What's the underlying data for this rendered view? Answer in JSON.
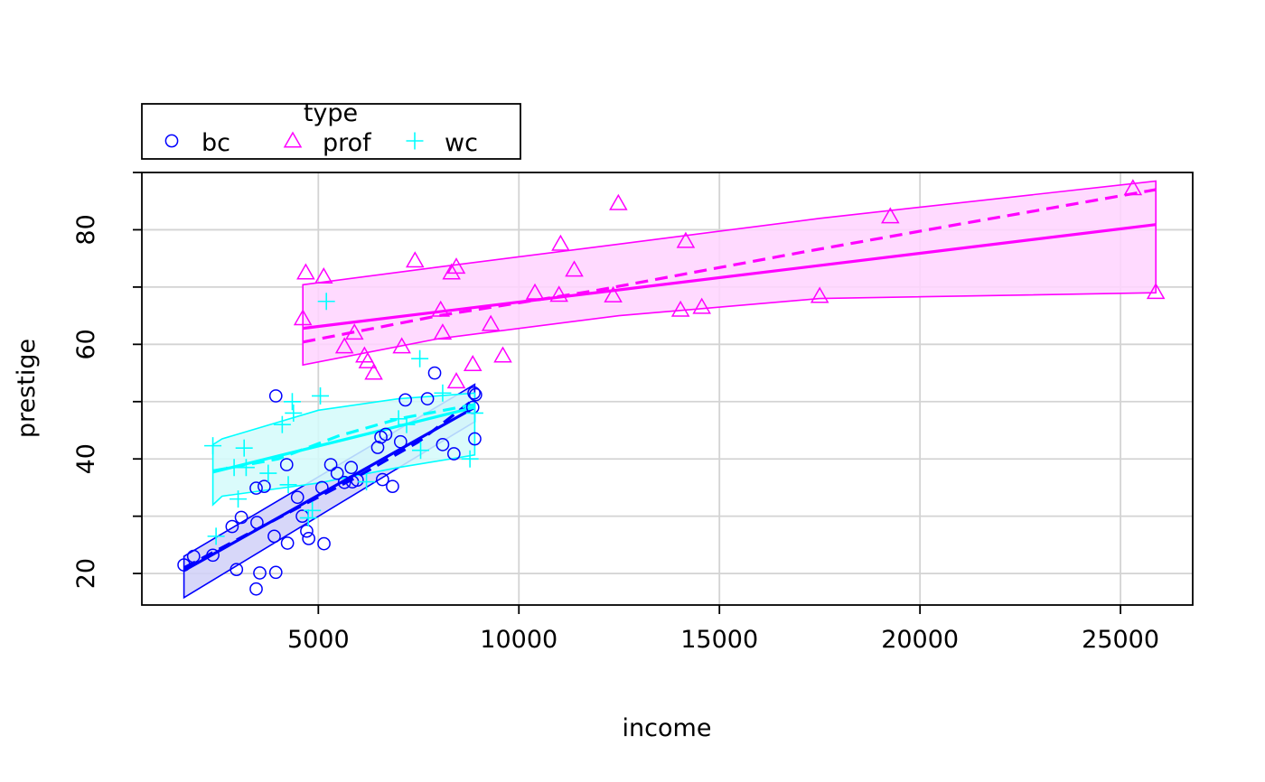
{
  "chart_data": {
    "type": "scatter",
    "title": "",
    "xlabel": "income",
    "ylabel": "prestige",
    "xlim": [
      600,
      26800
    ],
    "ylim": [
      14.5,
      90
    ],
    "xticks": [
      5000,
      10000,
      15000,
      20000,
      25000
    ],
    "yticks": [
      20,
      40,
      60,
      80
    ],
    "grid": true,
    "legend": {
      "title": "type",
      "position": "top-left",
      "entries": [
        {
          "label": "bc",
          "shape": "circle",
          "color": "#0000ff"
        },
        {
          "label": "prof",
          "shape": "triangle",
          "color": "#ff00ff"
        },
        {
          "label": "wc",
          "shape": "plus",
          "color": "#00ffff"
        }
      ]
    },
    "series": [
      {
        "label": "bc",
        "shape": "circle",
        "color": "#0000ff",
        "band_fill": "#d0d0f8",
        "points": [
          [
            1650,
            21.5
          ],
          [
            1890,
            23
          ],
          [
            2370,
            23.2
          ],
          [
            2850,
            28.2
          ],
          [
            2960,
            20.7
          ],
          [
            3080,
            29.8
          ],
          [
            3450,
            17.3
          ],
          [
            3450,
            34.9
          ],
          [
            3470,
            28.9
          ],
          [
            3540,
            20.1
          ],
          [
            3650,
            35.2
          ],
          [
            3900,
            26.5
          ],
          [
            3940,
            51
          ],
          [
            3940,
            20.2
          ],
          [
            4210,
            39
          ],
          [
            4230,
            25.3
          ],
          [
            4480,
            33.3
          ],
          [
            4600,
            30
          ],
          [
            4710,
            27.4
          ],
          [
            4760,
            26.1
          ],
          [
            5090,
            35
          ],
          [
            5140,
            25.2
          ],
          [
            5310,
            39
          ],
          [
            5470,
            37.5
          ],
          [
            5650,
            35.9
          ],
          [
            5820,
            38.5
          ],
          [
            5850,
            36
          ],
          [
            5970,
            36.3
          ],
          [
            6480,
            42
          ],
          [
            6560,
            43.8
          ],
          [
            6600,
            36.4
          ],
          [
            6680,
            44.3
          ],
          [
            6850,
            35.2
          ],
          [
            7050,
            43
          ],
          [
            7170,
            50.3
          ],
          [
            7720,
            50.5
          ],
          [
            7900,
            55
          ],
          [
            8100,
            42.5
          ],
          [
            8380,
            40.9
          ],
          [
            8850,
            49
          ],
          [
            8880,
            51.5
          ],
          [
            8900,
            43.5
          ],
          [
            8920,
            51.2
          ]
        ],
        "fit": {
          "x": [
            1650,
            8900
          ],
          "y": [
            20.5,
            49
          ]
        },
        "smooth": {
          "x": [
            1650,
            3000,
            4500,
            6000,
            7500,
            8900
          ],
          "y": [
            21,
            26,
            31.5,
            37,
            43,
            50.5
          ]
        },
        "band": {
          "x": [
            1650,
            8900
          ],
          "upper": [
            23,
            53
          ],
          "lower": [
            15.8,
            46.5
          ]
        }
      },
      {
        "label": "prof",
        "shape": "triangle",
        "color": "#ff00ff",
        "band_fill": "#ffd4ff",
        "points": [
          [
            4614,
            64.5
          ],
          [
            4686,
            72.5
          ],
          [
            5134,
            71.8
          ],
          [
            5650,
            59.6
          ],
          [
            5900,
            62
          ],
          [
            6150,
            58
          ],
          [
            6230,
            57
          ],
          [
            6380,
            55
          ],
          [
            7080,
            59.6
          ],
          [
            7410,
            74.6
          ],
          [
            8050,
            66
          ],
          [
            8100,
            62
          ],
          [
            8320,
            72.5
          ],
          [
            8440,
            73.5
          ],
          [
            8440,
            53.5
          ],
          [
            8850,
            56.5
          ],
          [
            9300,
            63.5
          ],
          [
            9600,
            58
          ],
          [
            10400,
            69
          ],
          [
            11000,
            68.6
          ],
          [
            11040,
            77.5
          ],
          [
            11380,
            73
          ],
          [
            12350,
            68.5
          ],
          [
            12480,
            84.6
          ],
          [
            14030,
            66
          ],
          [
            14160,
            78
          ],
          [
            14560,
            66.5
          ],
          [
            17500,
            68.4
          ],
          [
            19260,
            82.3
          ],
          [
            25310,
            87.2
          ],
          [
            25880,
            69.1
          ]
        ],
        "fit": {
          "x": [
            4614,
            25880
          ],
          "y": [
            62.8,
            80.9
          ]
        },
        "smooth": {
          "x": [
            4614,
            8000,
            12000,
            17000,
            21000,
            25880
          ],
          "y": [
            60.4,
            65,
            69.5,
            76,
            81,
            87
          ]
        },
        "band": {
          "x": [
            4614,
            8000,
            12500,
            17500,
            25880
          ],
          "upper": [
            70.4,
            73.5,
            77.5,
            82,
            88.5
          ],
          "lower": [
            56.4,
            61,
            65,
            68,
            69
          ]
        }
      },
      {
        "label": "wc",
        "shape": "plus",
        "color": "#00ffff",
        "band_fill": "#d4fafa",
        "points": [
          [
            2370,
            42.3
          ],
          [
            2450,
            26.5
          ],
          [
            2900,
            38.5
          ],
          [
            3000,
            33
          ],
          [
            3150,
            41.9
          ],
          [
            3200,
            38.5
          ],
          [
            3750,
            37.5
          ],
          [
            4100,
            46
          ],
          [
            4250,
            35.5
          ],
          [
            4350,
            50
          ],
          [
            4380,
            48
          ],
          [
            4750,
            29.7
          ],
          [
            4850,
            31
          ],
          [
            5050,
            51
          ],
          [
            5200,
            67.5
          ],
          [
            6200,
            36
          ],
          [
            7000,
            47
          ],
          [
            7200,
            46
          ],
          [
            7530,
            57.5
          ],
          [
            7550,
            41.5
          ],
          [
            8100,
            51.5
          ],
          [
            8780,
            40
          ],
          [
            8900,
            48
          ]
        ],
        "fit": {
          "x": [
            2370,
            8900
          ],
          "y": [
            37.7,
            49
          ]
        },
        "smooth": {
          "x": [
            2370,
            4000,
            5500,
            7000,
            8900
          ],
          "y": [
            37.9,
            40,
            44,
            47,
            49.5
          ]
        },
        "band": {
          "x": [
            2370,
            2600,
            5000,
            7000,
            8900
          ],
          "upper": [
            42.5,
            43.5,
            48.5,
            50.5,
            51.5
          ],
          "lower": [
            32,
            33.5,
            35.8,
            38.5,
            40.7
          ]
        }
      }
    ]
  }
}
